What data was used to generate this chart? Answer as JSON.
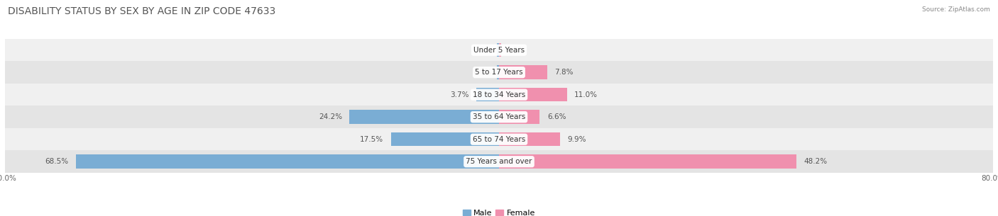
{
  "title": "DISABILITY STATUS BY SEX BY AGE IN ZIP CODE 47633",
  "source": "Source: ZipAtlas.com",
  "categories": [
    "Under 5 Years",
    "5 to 17 Years",
    "18 to 34 Years",
    "35 to 64 Years",
    "65 to 74 Years",
    "75 Years and over"
  ],
  "male_values": [
    0.0,
    0.0,
    3.7,
    24.2,
    17.5,
    68.5
  ],
  "female_values": [
    0.0,
    7.8,
    11.0,
    6.6,
    9.9,
    48.2
  ],
  "xlim": 80.0,
  "male_color": "#7aadd4",
  "female_color": "#f090ae",
  "row_bg_colors": [
    "#f0f0f0",
    "#e4e4e4"
  ],
  "label_fontsize": 7.5,
  "title_fontsize": 10,
  "tick_fontsize": 7.5,
  "legend_fontsize": 8,
  "bar_height": 0.62,
  "fig_width": 14.06,
  "fig_height": 3.05
}
